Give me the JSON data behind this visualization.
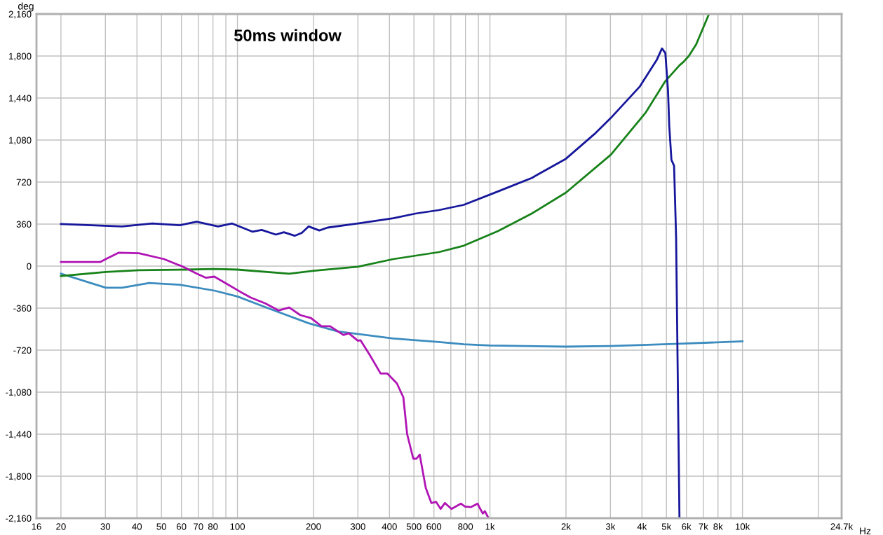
{
  "chart_data": {
    "type": "line",
    "title": "50ms window",
    "xlabel": "Hz",
    "ylabel": "deg",
    "log": "x",
    "grid": true,
    "xlim": [
      16,
      24700
    ],
    "xticks": [
      {
        "value": 16,
        "label": "16"
      },
      20,
      30,
      40,
      50,
      60,
      70,
      80,
      {
        "value": 90,
        "label": null
      },
      100,
      200,
      300,
      400,
      500,
      600,
      {
        "value": 700,
        "label": null
      },
      800,
      {
        "value": 900,
        "label": null
      },
      {
        "value": 1000,
        "label": "1k"
      },
      {
        "value": 2000,
        "label": "2k"
      },
      {
        "value": 3000,
        "label": "3k"
      },
      {
        "value": 4000,
        "label": "4k"
      },
      {
        "value": 5000,
        "label": "5k"
      },
      {
        "value": 6000,
        "label": "6k"
      },
      {
        "value": 7000,
        "label": "7k"
      },
      {
        "value": 8000,
        "label": "8k"
      },
      {
        "value": 9000,
        "label": null
      },
      {
        "value": 10000,
        "label": "10k"
      },
      {
        "value": 20000,
        "label": null
      },
      {
        "value": 24700,
        "label": "24.7k"
      }
    ],
    "ylim": [
      -2160,
      2160
    ],
    "yticks": [
      {
        "value": -2160,
        "label": "-2,160"
      },
      {
        "value": -1800,
        "label": "-1,800"
      },
      {
        "value": -1440,
        "label": "-1,440"
      },
      {
        "value": -1080,
        "label": "-1,080"
      },
      -720,
      -360,
      0,
      360,
      720,
      {
        "value": 1080,
        "label": "1,080"
      },
      {
        "value": 1440,
        "label": "1,440"
      },
      {
        "value": 1800,
        "label": "1,800"
      },
      {
        "value": 2160,
        "label": "2,160"
      }
    ],
    "series": [
      {
        "color": "#3c8cbf",
        "x": [
          20,
          30.1,
          34.9,
          44.7,
          59.1,
          81,
          100,
          132,
          191.5,
          250,
          414,
          628,
          788,
          1000,
          2000,
          3013,
          5630,
          10000
        ],
        "values": [
          -65,
          -185,
          -185,
          -145,
          -160,
          -210,
          -260,
          -360,
          -490,
          -560,
          -620,
          -650,
          -670,
          -680,
          -690,
          -685,
          -665,
          -645
        ]
      },
      {
        "color": "#18821a",
        "x": [
          20,
          30.1,
          40.7,
          62.2,
          81,
          100,
          160.4,
          201,
          300,
          414,
          628,
          788,
          1076,
          1463,
          2000,
          3013,
          4120,
          4950,
          5630,
          5840,
          6130,
          6560,
          7370
        ],
        "values": [
          -85,
          -50,
          -35,
          -30,
          -25,
          -30,
          -65,
          -40,
          -5,
          60,
          120,
          175,
          300,
          450,
          630,
          955,
          1310,
          1585,
          1720,
          1750,
          1800,
          1900,
          2160
        ]
      },
      {
        "color": "#b014b4",
        "x": [
          20,
          28.6,
          30.1,
          33.9,
          40.7,
          51.2,
          60.8,
          69,
          75.1,
          81,
          90.4,
          102.6,
          113,
          128.9,
          145.4,
          160.4,
          177.4,
          195.4,
          215.2,
          232.7,
          263,
          276,
          300,
          307,
          335,
          369,
          392,
          428,
          454,
          470,
          497,
          512,
          527,
          557,
          586,
          612,
          638,
          663,
          704,
          767,
          796,
          840,
          893,
          910,
          937,
          955,
          984
        ],
        "values": [
          35,
          35,
          60,
          115,
          110,
          60,
          -5,
          -65,
          -100,
          -90,
          -150,
          -220,
          -270,
          -320,
          -380,
          -355,
          -420,
          -445,
          -515,
          -515,
          -590,
          -575,
          -640,
          -635,
          -765,
          -920,
          -920,
          -1005,
          -1125,
          -1440,
          -1650,
          -1650,
          -1615,
          -1900,
          -2030,
          -2020,
          -2080,
          -2030,
          -2080,
          -2035,
          -2060,
          -2065,
          -2035,
          -2070,
          -2120,
          -2100,
          -2155
        ]
      },
      {
        "color": "#16179b",
        "x": [
          20,
          34.9,
          46,
          59.1,
          68.9,
          83.8,
          95.3,
          114.5,
          124.8,
          142,
          152.7,
          168.5,
          180,
          191.5,
          211,
          227.5,
          299.7,
          414.5,
          507,
          628,
          788,
          1076,
          1463,
          2000,
          2589,
          3013,
          3926,
          4573,
          4800,
          4950,
          5070,
          5130,
          5233,
          5360,
          5460,
          5630
        ],
        "values": [
          360,
          340,
          365,
          350,
          380,
          340,
          365,
          295,
          310,
          270,
          290,
          260,
          285,
          340,
          305,
          330,
          365,
          410,
          450,
          480,
          525,
          640,
          755,
          920,
          1130,
          1270,
          1540,
          1765,
          1865,
          1825,
          1510,
          1200,
          910,
          860,
          250,
          -2160
        ]
      }
    ]
  }
}
